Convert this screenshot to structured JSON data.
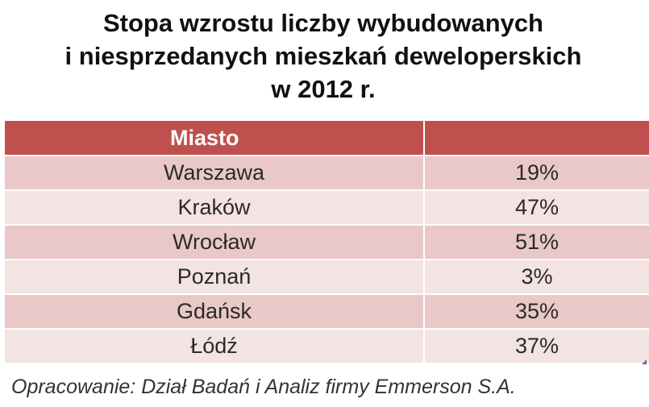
{
  "title": {
    "line1": "Stopa wzrostu liczby wybudowanych",
    "line2": "i niesprzedanych mieszkań deweloperskich",
    "line3": "w 2012 r."
  },
  "table": {
    "header": [
      "Miasto",
      ""
    ],
    "rows": [
      {
        "city": "Warszawa",
        "value": "19%"
      },
      {
        "city": "Kraków",
        "value": "47%"
      },
      {
        "city": "Wrocław",
        "value": "51%"
      },
      {
        "city": "Poznań",
        "value": "3%"
      },
      {
        "city": "Gdańsk",
        "value": "35%"
      },
      {
        "city": "Łódź",
        "value": "37%"
      }
    ]
  },
  "source": "Opracowanie: Dział Badań i Analiz firmy Emmerson S.A.",
  "colors": {
    "header_bg": "#c0504d",
    "row_dark": "#eac8c8",
    "row_light": "#f4e3e3"
  }
}
